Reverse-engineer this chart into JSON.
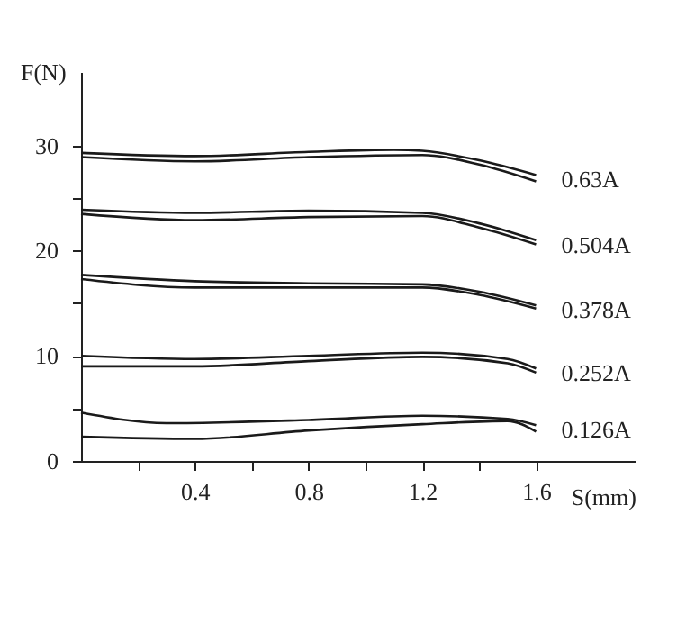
{
  "chart_data": {
    "type": "line",
    "xlabel": "S(mm)",
    "ylabel": "F(N)",
    "xlim": [
      0,
      1.95
    ],
    "ylim": [
      0,
      37
    ],
    "xticks": [
      {
        "value": 0.2,
        "label": null
      },
      0.4,
      {
        "value": 0.6,
        "label": null
      },
      0.8,
      {
        "value": 1.0,
        "label": null
      },
      1.2,
      {
        "value": 1.4,
        "label": null
      },
      1.6
    ],
    "yticks": [
      0,
      {
        "value": 5,
        "label": null
      },
      10,
      {
        "value": 15,
        "label": null
      },
      20,
      {
        "value": 25,
        "label": null
      },
      30
    ],
    "series": [
      {
        "name": "0.63A",
        "color": "#1a1a1a",
        "x": [
          0,
          0.4,
          0.8,
          1.1,
          1.2,
          1.4,
          1.6
        ],
        "values": [
          29.3,
          29.0,
          29.4,
          29.6,
          29.5,
          28.6,
          27.2
        ]
      },
      {
        "color": "#1a1a1a",
        "x": [
          0,
          0.4,
          0.8,
          1.2,
          1.4,
          1.6
        ],
        "values": [
          28.9,
          28.5,
          28.9,
          29.1,
          28.2,
          26.6
        ]
      },
      {
        "name": "0.504A",
        "color": "#1a1a1a",
        "x": [
          0,
          0.4,
          0.8,
          1.2,
          1.4,
          1.6
        ],
        "values": [
          23.9,
          23.6,
          23.8,
          23.6,
          22.6,
          21.0
        ]
      },
      {
        "color": "#1a1a1a",
        "x": [
          0,
          0.4,
          0.8,
          1.2,
          1.4,
          1.6
        ],
        "values": [
          23.5,
          22.9,
          23.2,
          23.3,
          22.2,
          20.6
        ]
      },
      {
        "name": "0.378A",
        "color": "#1a1a1a",
        "x": [
          0,
          0.4,
          0.8,
          1.2,
          1.4,
          1.6
        ],
        "values": [
          17.7,
          17.1,
          16.9,
          16.8,
          16.1,
          14.8
        ]
      },
      {
        "color": "#1a1a1a",
        "x": [
          0,
          0.4,
          0.8,
          1.2,
          1.4,
          1.6
        ],
        "values": [
          17.3,
          16.5,
          16.5,
          16.5,
          15.8,
          14.5
        ]
      },
      {
        "name": "0.252A",
        "color": "#1a1a1a",
        "x": [
          0,
          0.4,
          0.8,
          1.2,
          1.5,
          1.6
        ],
        "values": [
          10.0,
          9.7,
          10.0,
          10.3,
          9.7,
          8.8
        ]
      },
      {
        "color": "#1a1a1a",
        "x": [
          0,
          0.4,
          0.8,
          1.2,
          1.5,
          1.6
        ],
        "values": [
          9.0,
          9.0,
          9.5,
          9.9,
          9.3,
          8.4
        ]
      },
      {
        "name": "0.126A",
        "color": "#1a1a1a",
        "x": [
          0,
          0.3,
          0.8,
          1.2,
          1.5,
          1.6
        ],
        "values": [
          4.6,
          3.6,
          3.9,
          4.3,
          4.0,
          3.4
        ]
      },
      {
        "color": "#1a1a1a",
        "x": [
          0,
          0.4,
          0.8,
          1.2,
          1.5,
          1.6
        ],
        "values": [
          2.3,
          2.1,
          2.9,
          3.5,
          3.8,
          2.8
        ]
      }
    ]
  }
}
